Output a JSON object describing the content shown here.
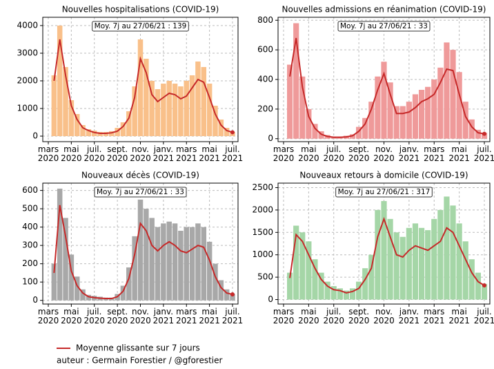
{
  "chart_data": [
    {
      "type": "combo",
      "title": "Nouvelles hospitalisations (COVID-19)",
      "annotation": "Moy. 7j au 27/06/21 : 139",
      "categories": [
        "mars 2020",
        null,
        null,
        null,
        "mai 2020",
        null,
        null,
        null,
        "juil. 2020",
        null,
        null,
        null,
        "sept. 2020",
        null,
        null,
        null,
        "nov. 2020",
        null,
        null,
        null,
        "janv. 2021",
        null,
        null,
        null,
        "mars 2021",
        null,
        null,
        null,
        "mai 2021",
        null,
        null,
        null,
        "juil. 2021"
      ],
      "series": [
        {
          "type": "bar",
          "color": "#f9c08a",
          "values": [
            null,
            2200,
            4000,
            2500,
            1300,
            800,
            400,
            250,
            200,
            150,
            150,
            180,
            300,
            500,
            900,
            1800,
            3500,
            2800,
            2000,
            1700,
            1900,
            2000,
            1900,
            1800,
            2000,
            2200,
            2700,
            2500,
            1900,
            1100,
            600,
            300,
            150
          ]
        },
        {
          "type": "line",
          "name": "Moyenne glissante sur 7 jours",
          "color": "#c62828",
          "values": [
            null,
            2000,
            3500,
            2200,
            1100,
            600,
            300,
            200,
            130,
            100,
            100,
            120,
            180,
            350,
            650,
            1400,
            2800,
            2300,
            1500,
            1250,
            1400,
            1550,
            1500,
            1350,
            1450,
            1750,
            2050,
            1950,
            1400,
            800,
            400,
            200,
            139
          ]
        }
      ],
      "ylim": [
        -200,
        4300
      ],
      "yticks": [
        0,
        1000,
        2000,
        3000,
        4000
      ],
      "grid": true
    },
    {
      "type": "combo",
      "title": "Nouvelles admissions en réanimation (COVID-19)",
      "annotation": "Moy. 7j au 27/06/21 : 33",
      "categories": [
        "mars 2020",
        null,
        null,
        null,
        "mai 2020",
        null,
        null,
        null,
        "juil. 2020",
        null,
        null,
        null,
        "sept. 2020",
        null,
        null,
        null,
        "nov. 2020",
        null,
        null,
        null,
        "janv. 2021",
        null,
        null,
        null,
        "mars 2021",
        null,
        null,
        null,
        "mai 2021",
        null,
        null,
        null,
        "juil. 2021"
      ],
      "series": [
        {
          "type": "bar",
          "color": "#ef9a9a",
          "values": [
            null,
            500,
            780,
            420,
            200,
            100,
            50,
            25,
            15,
            15,
            20,
            30,
            80,
            140,
            250,
            420,
            520,
            380,
            220,
            220,
            250,
            300,
            330,
            350,
            400,
            480,
            650,
            600,
            450,
            250,
            130,
            60,
            40
          ]
        },
        {
          "type": "line",
          "color": "#c62828",
          "values": [
            null,
            420,
            680,
            350,
            150,
            70,
            30,
            15,
            10,
            10,
            12,
            20,
            50,
            100,
            200,
            330,
            440,
            300,
            170,
            170,
            180,
            210,
            250,
            270,
            300,
            380,
            470,
            460,
            300,
            150,
            80,
            40,
            33
          ]
        }
      ],
      "ylim": [
        -20,
        820
      ],
      "yticks": [
        0,
        200,
        400,
        600,
        800
      ],
      "grid": true
    },
    {
      "type": "combo",
      "title": "Nouveaux décès (COVID-19)",
      "annotation": "Moy. 7j au 27/06/21 : 33",
      "categories": [
        "mars 2020",
        null,
        null,
        null,
        "mai 2020",
        null,
        null,
        null,
        "juil. 2020",
        null,
        null,
        null,
        "sept. 2020",
        null,
        null,
        null,
        "nov. 2020",
        null,
        null,
        null,
        "janv. 2021",
        null,
        null,
        null,
        "mars 2021",
        null,
        null,
        null,
        "mai 2021",
        null,
        null,
        null,
        "juil. 2021"
      ],
      "series": [
        {
          "type": "bar",
          "color": "#a8a8a8",
          "values": [
            null,
            200,
            610,
            450,
            250,
            130,
            60,
            30,
            25,
            20,
            15,
            15,
            35,
            80,
            180,
            350,
            550,
            500,
            450,
            400,
            420,
            430,
            420,
            380,
            400,
            400,
            420,
            400,
            320,
            200,
            110,
            60,
            35
          ]
        },
        {
          "type": "line",
          "color": "#c62828",
          "values": [
            null,
            150,
            520,
            350,
            160,
            80,
            40,
            20,
            15,
            12,
            10,
            10,
            20,
            50,
            120,
            250,
            420,
            380,
            300,
            270,
            300,
            320,
            300,
            270,
            260,
            280,
            300,
            290,
            220,
            130,
            70,
            40,
            33
          ]
        }
      ],
      "ylim": [
        -20,
        640
      ],
      "yticks": [
        0,
        100,
        200,
        300,
        400,
        500,
        600
      ],
      "grid": true
    },
    {
      "type": "combo",
      "title": "Nouveaux retours à domicile (COVID-19)",
      "annotation": "Moy. 7j au 27/06/21 : 317",
      "categories": [
        "mars 2020",
        null,
        null,
        null,
        "mai 2020",
        null,
        null,
        null,
        "juil. 2020",
        null,
        null,
        null,
        "sept. 2020",
        null,
        null,
        null,
        "nov. 2020",
        null,
        null,
        null,
        "janv. 2021",
        null,
        null,
        null,
        "mars 2021",
        null,
        null,
        null,
        "mai 2021",
        null,
        null,
        null,
        "juil. 2021"
      ],
      "series": [
        {
          "type": "bar",
          "color": "#a5d6a7",
          "values": [
            null,
            600,
            1650,
            1500,
            1300,
            900,
            600,
            400,
            300,
            250,
            200,
            250,
            400,
            700,
            1000,
            2000,
            2200,
            1800,
            1500,
            1400,
            1600,
            1700,
            1600,
            1550,
            1800,
            2000,
            2300,
            2100,
            1700,
            1300,
            900,
            600,
            350
          ]
        },
        {
          "type": "line",
          "color": "#c62828",
          "values": [
            null,
            480,
            1450,
            1300,
            1000,
            700,
            450,
            300,
            220,
            200,
            150,
            180,
            250,
            450,
            700,
            1400,
            1800,
            1400,
            1000,
            950,
            1100,
            1200,
            1150,
            1100,
            1200,
            1300,
            1600,
            1500,
            1200,
            900,
            600,
            400,
            317
          ]
        }
      ],
      "ylim": [
        -100,
        2600
      ],
      "yticks": [
        0,
        500,
        1000,
        1500,
        2000,
        2500
      ],
      "grid": true
    }
  ],
  "footer": "auteur : Germain Forestier / @gforestier"
}
